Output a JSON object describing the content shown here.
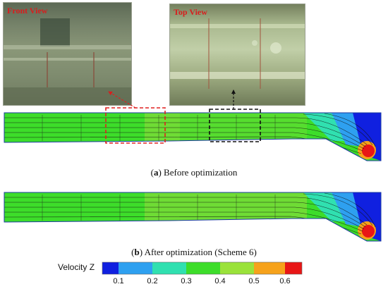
{
  "photos": {
    "front_label": "Front View",
    "top_label": "Top View"
  },
  "captions": {
    "a_letter": "a",
    "a_text": " Before optimization",
    "b_letter": "b",
    "b_text": " After optimization (Scheme 6)"
  },
  "colorbar": {
    "title": "Velocity Z",
    "ticks": [
      "0.1",
      "0.2",
      "0.3",
      "0.4",
      "0.5",
      "0.6"
    ],
    "colors": [
      "#1020e0",
      "#2ea0f0",
      "#30e0b0",
      "#3ddd2a",
      "#9ae23a",
      "#f6a21b",
      "#e81616"
    ]
  },
  "colors": {
    "dominant_flow": "#3dd82c",
    "highlight_red": "#e02020",
    "highlight_black": "#111111"
  }
}
